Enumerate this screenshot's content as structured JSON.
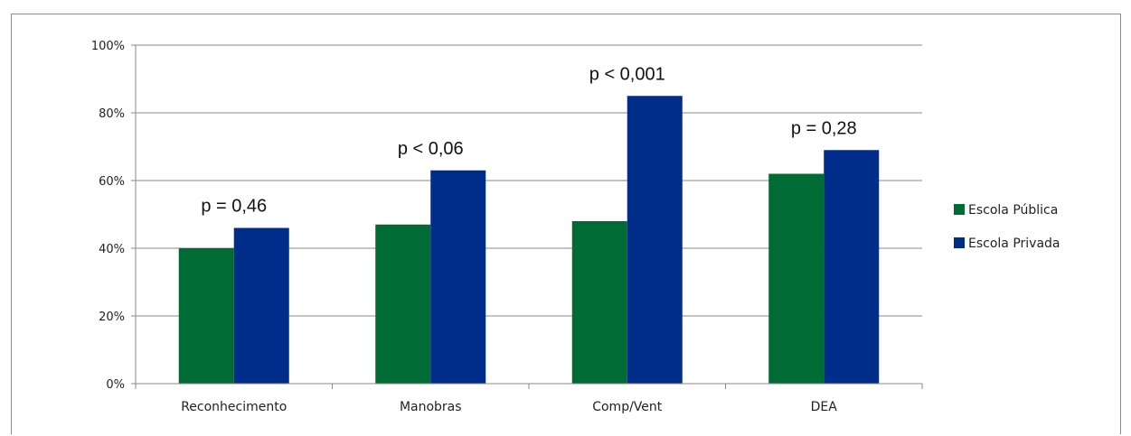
{
  "chart_data": {
    "type": "bar",
    "categories": [
      "Reconhecimento",
      "Manobras",
      "Comp/Vent",
      "DEA"
    ],
    "series": [
      {
        "name": "Escola Pública",
        "values": [
          40,
          47,
          48,
          62
        ],
        "color": "#006b34"
      },
      {
        "name": "Escola Privada",
        "values": [
          46,
          63,
          85,
          69
        ],
        "color": "#002c8a"
      }
    ],
    "annotations": [
      "p = 0,46",
      "p < 0,06",
      "p < 0,001",
      "p = 0,28"
    ],
    "ylim": [
      0,
      100
    ],
    "yticks": [
      0,
      20,
      40,
      60,
      80,
      100
    ],
    "ytick_labels": [
      "0%",
      "20%",
      "40%",
      "60%",
      "80%",
      "100%"
    ],
    "title": "",
    "xlabel": "",
    "ylabel": "",
    "grid": true,
    "legend_position": "right"
  }
}
